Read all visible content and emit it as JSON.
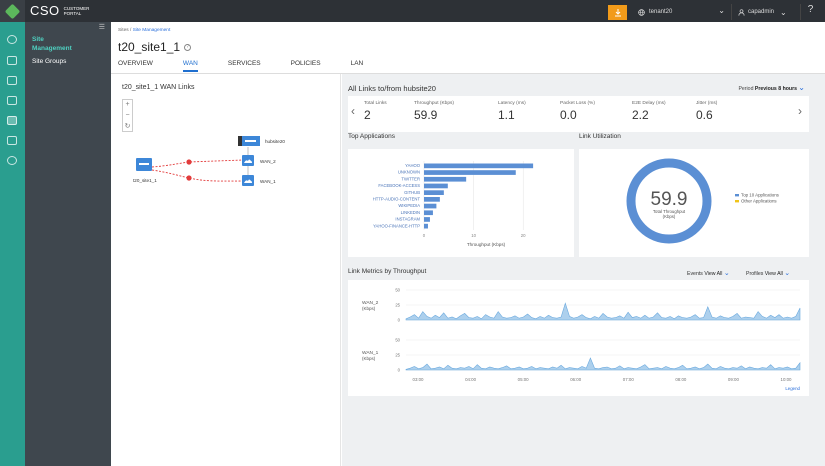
{
  "header": {
    "brand_main": "CSO",
    "brand_sub": "CUSTOMER PORTAL",
    "tenant": "tenant20",
    "user": "capadmin",
    "help_icon": "question-icon"
  },
  "sidebar": {
    "items": [
      {
        "label": "Site Management",
        "active": true
      },
      {
        "label": "Site Groups",
        "active": false
      }
    ]
  },
  "breadcrumb": {
    "root": "Sites",
    "sep": "/",
    "current": "Site Management"
  },
  "page_title": "t20_site1_1",
  "tabs": [
    {
      "label": "OVERVIEW",
      "active": false
    },
    {
      "label": "WAN",
      "active": true
    },
    {
      "label": "SERVICES",
      "active": false
    },
    {
      "label": "POLICIES",
      "active": false
    },
    {
      "label": "LAN",
      "active": false
    }
  ],
  "wan_links": {
    "title": "t20_site1_1 WAN Links",
    "zoom": [
      "+",
      "−",
      "↻"
    ],
    "nodes": {
      "hub": "hubsite20",
      "wan2": "WAN_2",
      "wan1": "WAN_1",
      "site": "t20_site1_1"
    }
  },
  "all_links": {
    "title": "All Links to/from hubsite20",
    "period_label": "Period",
    "period_value": "Previous 8 hours",
    "metrics": [
      {
        "label": "Total Links",
        "value": "2"
      },
      {
        "label": "Throughput (Kbps)",
        "value": "59.9"
      },
      {
        "label": "Latency (ms)",
        "value": "1.1"
      },
      {
        "label": "Packet Loss (%)",
        "value": "0.0"
      },
      {
        "label": "E2E Delay (ms)",
        "value": "2.2"
      },
      {
        "label": "Jitter (ms)",
        "value": "0.6"
      }
    ]
  },
  "top_apps": {
    "title": "Top Applications",
    "chart_data": {
      "type": "bar",
      "orientation": "horizontal",
      "categories": [
        "YAHOO",
        "UNKNOWN",
        "TWITTER",
        "FACEBOOK-ACCESS",
        "GITHUB",
        "HTTP-AUDIO-CONTENT",
        "WIKIPEDIA",
        "LINKEDIN",
        "INSTAGRAM",
        "YAHOO-FINANCE-HTTP"
      ],
      "values": [
        22,
        18.5,
        8.5,
        4.8,
        4,
        3.2,
        2.5,
        1.8,
        1.2,
        0.8
      ],
      "xlabel": "Throughput (Kbps)",
      "xlim": [
        0,
        25
      ],
      "xticks": [
        "0",
        "10",
        "20"
      ],
      "color": "#5b8fd4"
    }
  },
  "utilization": {
    "title": "Link Utilization",
    "chart_data": {
      "type": "pie",
      "center_value": "59.9",
      "center_label": "Total Throughput (Kbps)",
      "series": [
        {
          "name": "Top 10 Applications",
          "value": 100,
          "color": "#5b8fd4"
        },
        {
          "name": "Other Applications",
          "value": 0,
          "color": "#f0c419"
        }
      ]
    }
  },
  "link_metrics": {
    "title": "Link Metrics by Throughput",
    "events_label": "Events",
    "events_value": "View All",
    "profiles_label": "Profiles",
    "profiles_value": "View All",
    "legend_link": "Legend",
    "chart_data": {
      "type": "area",
      "x_ticks": [
        "03:00",
        "04:00",
        "05:00",
        "06:00",
        "07:00",
        "08:00",
        "09:00",
        "10:00"
      ],
      "series": [
        {
          "name": "WAN_2",
          "ylabel": "(Kbps)",
          "yticks": [
            "50",
            "25",
            "0"
          ],
          "ylim": [
            0,
            50
          ],
          "color": "#6aa9de",
          "values": [
            2,
            5,
            9,
            3,
            14,
            6,
            3,
            8,
            4,
            12,
            3,
            5,
            2,
            7,
            11,
            4,
            3,
            6,
            2,
            9,
            5,
            3,
            14,
            5,
            3,
            4,
            7,
            3,
            5,
            10,
            4,
            2,
            6,
            3,
            8,
            4,
            3,
            5,
            28,
            6,
            3,
            5,
            9,
            4,
            2,
            6,
            3,
            11,
            5,
            3,
            4,
            7,
            3,
            13,
            4,
            6,
            3,
            8,
            3,
            5,
            12,
            4,
            3,
            6,
            2,
            7,
            4,
            3,
            5,
            9,
            3,
            4,
            22,
            5,
            3,
            7,
            4,
            3,
            6,
            11,
            3,
            5,
            4,
            3,
            14,
            6,
            3,
            8,
            4,
            9,
            3,
            5,
            3,
            6,
            20
          ]
        },
        {
          "name": "WAN_1",
          "ylabel": "(Kbps)",
          "yticks": [
            "50",
            "25",
            "0"
          ],
          "ylim": [
            0,
            50
          ],
          "color": "#6aa9de",
          "values": [
            1,
            3,
            6,
            2,
            4,
            10,
            2,
            3,
            5,
            2,
            8,
            3,
            2,
            4,
            3,
            6,
            2,
            9,
            3,
            2,
            5,
            3,
            2,
            4,
            7,
            2,
            3,
            5,
            2,
            3,
            6,
            2,
            4,
            3,
            2,
            5,
            3,
            8,
            2,
            4,
            3,
            2,
            6,
            3,
            20,
            3,
            2,
            4,
            5,
            2,
            3,
            7,
            2,
            4,
            3,
            2,
            5,
            9,
            2,
            3,
            4,
            2,
            6,
            3,
            2,
            4,
            8,
            2,
            3,
            5,
            2,
            4,
            10,
            3,
            2,
            6,
            3,
            2,
            4,
            3,
            7,
            2,
            5,
            3,
            2,
            4,
            3,
            9,
            2,
            4,
            3,
            5,
            2,
            3,
            12
          ]
        }
      ]
    }
  }
}
